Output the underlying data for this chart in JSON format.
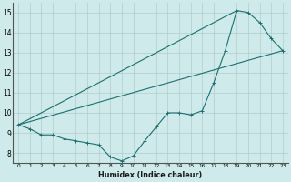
{
  "xlabel": "Humidex (Indice chaleur)",
  "xlim": [
    -0.5,
    23.5
  ],
  "ylim": [
    7.5,
    15.5
  ],
  "xtick_labels": [
    "0",
    "1",
    "2",
    "3",
    "4",
    "5",
    "6",
    "7",
    "8",
    "9",
    "10",
    "11",
    "12",
    "13",
    "14",
    "15",
    "16",
    "17",
    "18",
    "19",
    "20",
    "21",
    "22",
    "23"
  ],
  "xtick_vals": [
    0,
    1,
    2,
    3,
    4,
    5,
    6,
    7,
    8,
    9,
    10,
    11,
    12,
    13,
    14,
    15,
    16,
    17,
    18,
    19,
    20,
    21,
    22,
    23
  ],
  "ytick_vals": [
    8,
    9,
    10,
    11,
    12,
    13,
    14,
    15
  ],
  "background_color": "#ceeaea",
  "grid_color": "#b0cccc",
  "line_color": "#1a7070",
  "line1_x": [
    0,
    1,
    2,
    3,
    4,
    5,
    6,
    7,
    8,
    9,
    10,
    11,
    12,
    13,
    14,
    15,
    16,
    17,
    18,
    19,
    20,
    21,
    22,
    23
  ],
  "line1_y": [
    9.4,
    9.2,
    8.9,
    8.9,
    8.7,
    8.6,
    8.5,
    8.4,
    7.8,
    7.6,
    7.85,
    8.6,
    9.3,
    10.0,
    10.0,
    9.9,
    10.1,
    11.5,
    13.1,
    15.1,
    15.0,
    14.5,
    13.7,
    13.1
  ],
  "trend1_x": [
    0,
    19
  ],
  "trend1_y": [
    9.4,
    15.1
  ],
  "trend2_x": [
    0,
    23
  ],
  "trend2_y": [
    9.4,
    13.1
  ]
}
